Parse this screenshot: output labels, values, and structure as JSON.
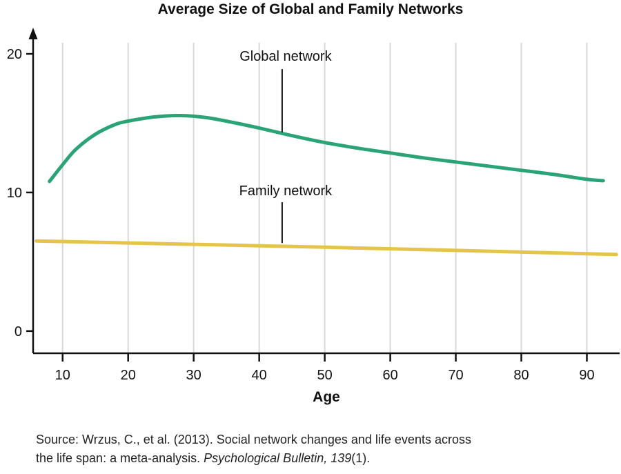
{
  "chart_data": {
    "type": "line",
    "title": "Average Size of Global and Family Networks",
    "xlabel": "Age",
    "ylabel": "",
    "xlim": [
      5.5,
      95
    ],
    "ylim": [
      -1.6,
      20.9
    ],
    "xticks": [
      10,
      20,
      30,
      40,
      50,
      60,
      70,
      80,
      90
    ],
    "yticks": [
      0,
      10,
      20
    ],
    "grid": "vertical",
    "gridline_color": "#d8d8d8",
    "axis_color": "#111111",
    "legend_position": "none",
    "series": [
      {
        "name": "Global network",
        "color": "#2aa376",
        "x": [
          8,
          10,
          12,
          15,
          18,
          20,
          24,
          28,
          32,
          36,
          40,
          45,
          50,
          55,
          60,
          65,
          70,
          75,
          80,
          85,
          90,
          92.5
        ],
        "y": [
          10.8,
          12.0,
          13.1,
          14.2,
          14.9,
          15.15,
          15.45,
          15.55,
          15.4,
          15.05,
          14.65,
          14.1,
          13.6,
          13.2,
          12.85,
          12.5,
          12.2,
          11.9,
          11.6,
          11.3,
          10.95,
          10.85
        ]
      },
      {
        "name": "Family network",
        "color": "#e4c44a",
        "x": [
          6,
          50,
          94.5
        ],
        "y": [
          6.5,
          6.05,
          5.53
        ]
      }
    ],
    "annotations": [
      {
        "label": "Global network",
        "x": 43.5,
        "text_y": 19.5,
        "line_y1": 18.9,
        "line_y2": 14.35
      },
      {
        "label": "Family network",
        "x": 43.5,
        "text_y": 9.8,
        "line_y1": 9.3,
        "line_y2": 6.35
      }
    ]
  },
  "source": {
    "line1": "Source: Wrzus, C., et al. (2013). Social network changes and life events across",
    "line2_prefix": "the life span: a meta-analysis. ",
    "line2_italic": "Psychological Bulletin, 139",
    "line2_suffix": "(1)."
  }
}
